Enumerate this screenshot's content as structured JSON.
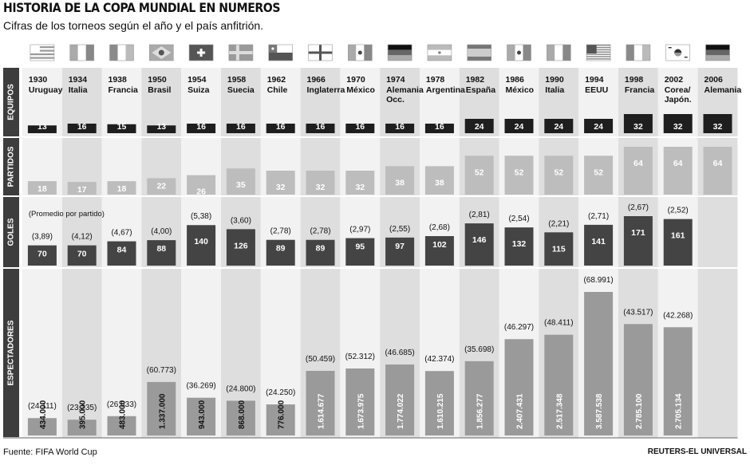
{
  "title": "HISTORIA DE LA COPA MUNDIAL EN NUMEROS",
  "subtitle": "Cifras de los torneos según el año y el país anfitrión.",
  "source": "Fuente: FIFA World Cup",
  "credit": "REUTERS-EL UNIVERSAL",
  "colors": {
    "equipos": "#1e1e1e",
    "partidos": "#bdbdbd",
    "goles": "#444444",
    "espectadores": "#9a9a9a",
    "band_dark": "#dedede",
    "band_light": "#f2f2f2",
    "section_label": "#3d3d3d"
  },
  "chart_data": {
    "type": "bar",
    "sections": [
      "EQUIPOS",
      "PARTIDOS",
      "GOLES",
      "ESPECTADORES"
    ],
    "goles_note": "(Promedio por partido)",
    "tournaments": [
      {
        "year": "1930",
        "host": [
          "Uruguay"
        ],
        "flag": "uruguay",
        "equipos": "13",
        "partidos": "18",
        "goles": "70",
        "promedio": "(3,89)",
        "espectadores": "434.000",
        "promedio_espectadores": "(24.111)",
        "espectadores_value": 434000
      },
      {
        "year": "1934",
        "host": [
          "Italia"
        ],
        "flag": "italia",
        "equipos": "16",
        "partidos": "17",
        "goles": "70",
        "promedio": "(4,12)",
        "espectadores": "395.000",
        "promedio_espectadores": "(23.235)",
        "espectadores_value": 395000
      },
      {
        "year": "1938",
        "host": [
          "Francia"
        ],
        "flag": "francia",
        "equipos": "15",
        "partidos": "18",
        "goles": "84",
        "promedio": "(4,67)",
        "espectadores": "483.000",
        "promedio_espectadores": "(26.833)",
        "espectadores_value": 483000
      },
      {
        "year": "1950",
        "host": [
          "Brasil"
        ],
        "flag": "brasil",
        "equipos": "13",
        "partidos": "22",
        "goles": "88",
        "promedio": "(4,00)",
        "espectadores": "1.337.000",
        "promedio_espectadores": "(60.773)",
        "espectadores_value": 1337000
      },
      {
        "year": "1954",
        "host": [
          "Suiza"
        ],
        "flag": "suiza",
        "equipos": "16",
        "partidos": "26",
        "goles": "140",
        "promedio": "(5,38)",
        "espectadores": "943.000",
        "promedio_espectadores": "(36.269)",
        "espectadores_value": 943000
      },
      {
        "year": "1958",
        "host": [
          "Suecia"
        ],
        "flag": "suecia",
        "equipos": "16",
        "partidos": "35",
        "goles": "126",
        "promedio": "(3,60)",
        "espectadores": "868.000",
        "promedio_espectadores": "(24.800)",
        "espectadores_value": 868000
      },
      {
        "year": "1962",
        "host": [
          "Chile"
        ],
        "flag": "chile",
        "equipos": "16",
        "partidos": "32",
        "goles": "89",
        "promedio": "(2,78)",
        "espectadores": "776.000",
        "promedio_espectadores": "(24.250)",
        "espectadores_value": 776000
      },
      {
        "year": "1966",
        "host": [
          "Inglaterra"
        ],
        "flag": "inglaterra",
        "equipos": "16",
        "partidos": "32",
        "goles": "89",
        "promedio": "(2,78)",
        "espectadores": "1.614.677",
        "promedio_espectadores": "(50.459)",
        "espectadores_value": 1614677
      },
      {
        "year": "1970",
        "host": [
          "México"
        ],
        "flag": "mexico",
        "equipos": "16",
        "partidos": "32",
        "goles": "95",
        "promedio": "(2,97)",
        "espectadores": "1.673.975",
        "promedio_espectadores": "(52.312)",
        "espectadores_value": 1673975
      },
      {
        "year": "1974",
        "host": [
          "Alemania",
          "Occ."
        ],
        "flag": "alemania",
        "equipos": "16",
        "partidos": "38",
        "goles": "97",
        "promedio": "(2,55)",
        "espectadores": "1.774.022",
        "promedio_espectadores": "(46.685)",
        "espectadores_value": 1774022
      },
      {
        "year": "1978",
        "host": [
          "Argentina"
        ],
        "flag": "argentina",
        "equipos": "16",
        "partidos": "38",
        "goles": "102",
        "promedio": "(2,68)",
        "espectadores": "1.610.215",
        "promedio_espectadores": "(42.374)",
        "espectadores_value": 1610215
      },
      {
        "year": "1982",
        "host": [
          "España"
        ],
        "flag": "espana",
        "equipos": "24",
        "partidos": "52",
        "goles": "146",
        "promedio": "(2,81)",
        "espectadores": "1.856.277",
        "promedio_espectadores": "(35.698)",
        "espectadores_value": 1856277
      },
      {
        "year": "1986",
        "host": [
          "México"
        ],
        "flag": "mexico",
        "equipos": "24",
        "partidos": "52",
        "goles": "132",
        "promedio": "(2,54)",
        "espectadores": "2.407.431",
        "promedio_espectadores": "(46.297)",
        "espectadores_value": 2407431
      },
      {
        "year": "1990",
        "host": [
          "Italia"
        ],
        "flag": "italia",
        "equipos": "24",
        "partidos": "52",
        "goles": "115",
        "promedio": "(2,21)",
        "espectadores": "2.517.348",
        "promedio_espectadores": "(48.411)",
        "espectadores_value": 2517348
      },
      {
        "year": "1994",
        "host": [
          "EEUU"
        ],
        "flag": "eeuu",
        "equipos": "24",
        "partidos": "52",
        "goles": "141",
        "promedio": "(2,71)",
        "espectadores": "3.587.538",
        "promedio_espectadores": "(68.991)",
        "espectadores_value": 3587538
      },
      {
        "year": "1998",
        "host": [
          "Francia"
        ],
        "flag": "francia",
        "equipos": "32",
        "partidos": "64",
        "goles": "171",
        "promedio": "(2,67)",
        "espectadores": "2.785.100",
        "promedio_espectadores": "(43.517)",
        "espectadores_value": 2785100
      },
      {
        "year": "2002",
        "host": [
          "Corea/",
          "Japón."
        ],
        "flag": "corea",
        "equipos": "32",
        "partidos": "64",
        "goles": "161",
        "promedio": "(2,52)",
        "espectadores": "2.705.134",
        "promedio_espectadores": "(42.268)",
        "espectadores_value": 2705134
      },
      {
        "year": "2006",
        "host": [
          "Alemania"
        ],
        "flag": "alemania",
        "equipos": "32",
        "partidos": "64",
        "goles": "",
        "promedio": "",
        "espectadores": "",
        "promedio_espectadores": "",
        "espectadores_value": null
      }
    ]
  }
}
